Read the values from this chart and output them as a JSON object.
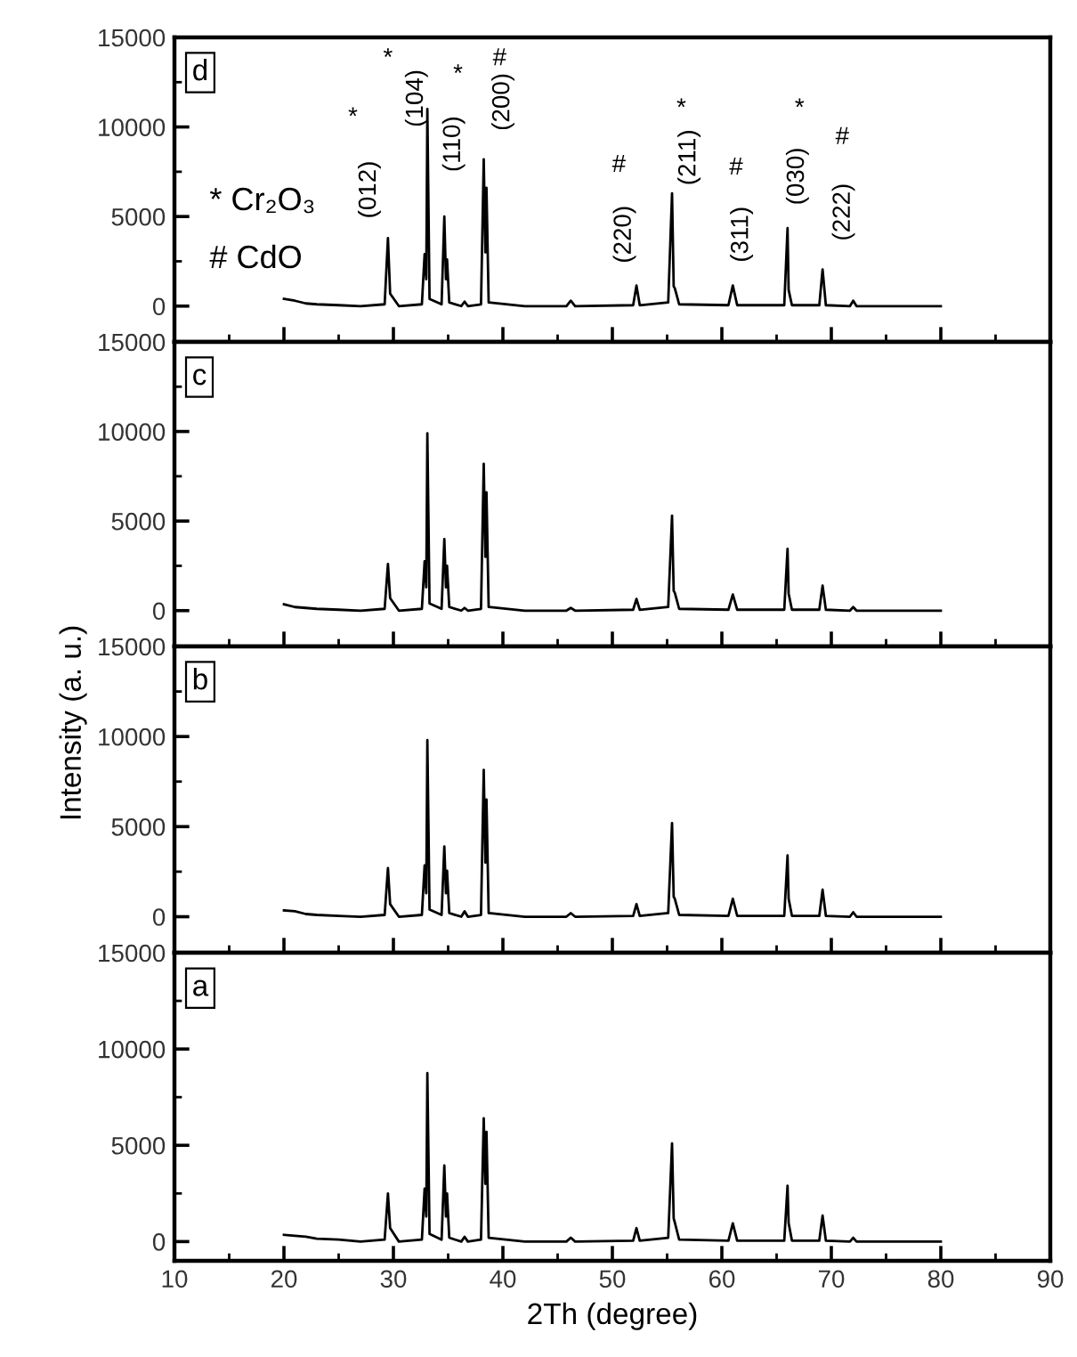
{
  "chart_data": [
    {
      "type": "line",
      "xlim": [
        10,
        90
      ],
      "ylim": [
        -2000,
        15000
      ],
      "xticks": [
        10,
        20,
        30,
        40,
        50,
        60,
        70,
        80,
        90
      ],
      "yticks": [
        0,
        5000,
        10000,
        15000
      ],
      "tick_labels": "y",
      "grid": false,
      "annotations": [
        "d",
        "* Cr₂O₃",
        "# CdO",
        "(012)",
        "*",
        "(104)",
        "*",
        "(110)",
        "*",
        "(200)",
        "#",
        "(220)",
        "#",
        "(211)",
        "*",
        "(311)",
        "#",
        "(030)",
        "*",
        "(222)",
        "#"
      ],
      "x": [
        20,
        21,
        22,
        23,
        25,
        27,
        29.2,
        29.5,
        29.7,
        30.5,
        32.6,
        32.85,
        33.0,
        33.1,
        33.3,
        34.4,
        34.65,
        34.8,
        34.9,
        35.1,
        36.2,
        36.5,
        36.8,
        38.0,
        38.25,
        38.4,
        38.5,
        38.7,
        42,
        45.8,
        46.2,
        46.6,
        51.9,
        52.2,
        52.5,
        55.1,
        55.45,
        55.6,
        55.7,
        56.1,
        60.6,
        61.0,
        61.4,
        65.7,
        66.0,
        66.1,
        66.4,
        68.9,
        69.2,
        69.5,
        71.7,
        72.0,
        72.3,
        80
      ],
      "series": [
        {
          "color": "#000000",
          "values": [
            400,
            300,
            150,
            100,
            50,
            0,
            100,
            3800,
            700,
            0,
            100,
            2900,
            1500,
            11000,
            400,
            100,
            5000,
            1500,
            2600,
            200,
            0,
            250,
            0,
            100,
            8200,
            3000,
            6600,
            200,
            0,
            0,
            300,
            0,
            50,
            1150,
            50,
            200,
            6300,
            1100,
            1000,
            100,
            50,
            1150,
            50,
            50,
            4350,
            900,
            50,
            50,
            2050,
            50,
            0,
            300,
            0,
            0
          ]
        }
      ]
    },
    {
      "type": "line",
      "xlim": [
        10,
        90
      ],
      "ylim": [
        -2000,
        15000
      ],
      "xticks": [
        10,
        20,
        30,
        40,
        50,
        60,
        70,
        80,
        90
      ],
      "yticks": [
        0,
        5000,
        10000,
        15000
      ],
      "tick_labels": "y",
      "grid": false,
      "annotations": [
        "c"
      ],
      "x": [
        20,
        21,
        22,
        23,
        25,
        27,
        29.2,
        29.5,
        29.7,
        30.5,
        32.6,
        32.85,
        33.0,
        33.1,
        33.3,
        34.4,
        34.65,
        34.8,
        34.9,
        35.1,
        36.2,
        36.5,
        36.8,
        38.0,
        38.25,
        38.4,
        38.5,
        38.7,
        42,
        45.8,
        46.2,
        46.6,
        51.9,
        52.2,
        52.5,
        55.1,
        55.45,
        55.6,
        55.7,
        56.1,
        60.6,
        61.0,
        61.4,
        65.7,
        66.0,
        66.1,
        66.4,
        68.9,
        69.2,
        69.5,
        71.7,
        72.0,
        72.3,
        80
      ],
      "series": [
        {
          "color": "#000000",
          "values": [
            350,
            200,
            150,
            100,
            50,
            0,
            100,
            2600,
            700,
            0,
            100,
            2750,
            1300,
            9900,
            400,
            100,
            4000,
            1300,
            2500,
            200,
            0,
            150,
            0,
            100,
            8200,
            3000,
            6600,
            200,
            0,
            0,
            150,
            0,
            50,
            650,
            50,
            200,
            5300,
            1100,
            1000,
            100,
            50,
            900,
            50,
            50,
            3450,
            950,
            50,
            50,
            1400,
            50,
            0,
            200,
            0,
            0
          ]
        }
      ]
    },
    {
      "type": "line",
      "ylabel": "Intensity (a. u.)",
      "xlim": [
        10,
        90
      ],
      "ylim": [
        -2000,
        15000
      ],
      "xticks": [
        10,
        20,
        30,
        40,
        50,
        60,
        70,
        80,
        90
      ],
      "yticks": [
        0,
        5000,
        10000,
        15000
      ],
      "tick_labels": "y",
      "grid": false,
      "annotations": [
        "b"
      ],
      "x": [
        20,
        21,
        22,
        23,
        25,
        27,
        29.2,
        29.5,
        29.7,
        30.5,
        32.6,
        32.85,
        33.0,
        33.1,
        33.3,
        34.4,
        34.65,
        34.8,
        34.9,
        35.1,
        36.2,
        36.5,
        36.8,
        38.0,
        38.25,
        38.4,
        38.5,
        38.7,
        42,
        45.8,
        46.2,
        46.6,
        51.9,
        52.2,
        52.5,
        55.1,
        55.45,
        55.6,
        55.7,
        56.1,
        60.6,
        61.0,
        61.4,
        65.7,
        66.0,
        66.1,
        66.4,
        68.9,
        69.2,
        69.5,
        71.7,
        72.0,
        72.3,
        80
      ],
      "series": [
        {
          "color": "#000000",
          "values": [
            350,
            300,
            150,
            100,
            50,
            0,
            100,
            2700,
            700,
            0,
            100,
            2850,
            1300,
            9800,
            400,
            100,
            3900,
            1300,
            2550,
            200,
            0,
            300,
            0,
            100,
            8150,
            3000,
            6500,
            200,
            0,
            0,
            200,
            0,
            50,
            700,
            50,
            200,
            5200,
            1100,
            1000,
            100,
            50,
            1000,
            50,
            50,
            3400,
            1000,
            50,
            50,
            1500,
            50,
            0,
            250,
            0,
            0
          ]
        }
      ]
    },
    {
      "type": "line",
      "xlabel": "2Th (degree)",
      "xlim": [
        10,
        90
      ],
      "ylim": [
        -1000,
        15000
      ],
      "xticks": [
        10,
        20,
        30,
        40,
        50,
        60,
        70,
        80,
        90
      ],
      "yticks": [
        0,
        5000,
        10000,
        15000
      ],
      "grid": false,
      "annotations": [
        "a"
      ],
      "x": [
        20,
        21,
        22,
        23,
        25,
        27,
        29.2,
        29.5,
        29.7,
        30.5,
        32.6,
        32.85,
        33.0,
        33.1,
        33.3,
        34.4,
        34.65,
        34.8,
        34.9,
        35.1,
        36.2,
        36.5,
        36.8,
        38.0,
        38.25,
        38.4,
        38.5,
        38.7,
        42,
        45.8,
        46.2,
        46.6,
        51.9,
        52.2,
        52.5,
        55.1,
        55.45,
        55.6,
        55.7,
        56.1,
        60.6,
        61.0,
        61.4,
        65.7,
        66.0,
        66.1,
        66.4,
        68.9,
        69.2,
        69.5,
        71.7,
        72.0,
        72.3,
        80
      ],
      "series": [
        {
          "color": "#000000",
          "values": [
            350,
            300,
            250,
            150,
            100,
            0,
            100,
            2500,
            700,
            0,
            100,
            2750,
            1300,
            8750,
            400,
            100,
            3950,
            1300,
            2500,
            200,
            0,
            250,
            0,
            100,
            6400,
            3000,
            5700,
            200,
            0,
            0,
            200,
            0,
            50,
            700,
            50,
            200,
            5100,
            1200,
            1000,
            100,
            50,
            950,
            50,
            50,
            2900,
            950,
            50,
            50,
            1350,
            50,
            0,
            200,
            0,
            0
          ]
        }
      ]
    }
  ]
}
